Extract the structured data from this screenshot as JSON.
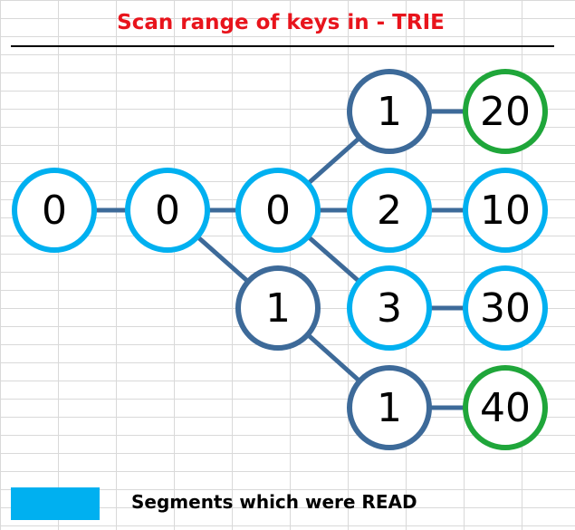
{
  "title": "Scan range of keys in - TRIE",
  "colors": {
    "title": "#e8141c",
    "read": "#00b0f0",
    "unread": "#3d6a99",
    "result": "#1fa63a",
    "edge": "#3d6a99"
  },
  "nodes": [
    {
      "id": "root",
      "label": "0",
      "status": "read"
    },
    {
      "id": "l1",
      "label": "0",
      "status": "read"
    },
    {
      "id": "l2a",
      "label": "0",
      "status": "read"
    },
    {
      "id": "l2b",
      "label": "1",
      "status": "unread"
    },
    {
      "id": "l3a",
      "label": "1",
      "status": "unread"
    },
    {
      "id": "l3b",
      "label": "2",
      "status": "read"
    },
    {
      "id": "l3c",
      "label": "3",
      "status": "read"
    },
    {
      "id": "l3d",
      "label": "1",
      "status": "unread"
    },
    {
      "id": "v20",
      "label": "20",
      "status": "result"
    },
    {
      "id": "v10",
      "label": "10",
      "status": "read"
    },
    {
      "id": "v30",
      "label": "30",
      "status": "read"
    },
    {
      "id": "v40",
      "label": "40",
      "status": "result"
    }
  ],
  "edges": [
    [
      "root",
      "l1"
    ],
    [
      "l1",
      "l2a"
    ],
    [
      "l1",
      "l2b"
    ],
    [
      "l2a",
      "l3a"
    ],
    [
      "l2a",
      "l3b"
    ],
    [
      "l2a",
      "l3c"
    ],
    [
      "l2b",
      "l3d"
    ],
    [
      "l3a",
      "v20"
    ],
    [
      "l3b",
      "v10"
    ],
    [
      "l3c",
      "v30"
    ],
    [
      "l3d",
      "v40"
    ]
  ],
  "legend": {
    "label": "Segments which were READ"
  }
}
